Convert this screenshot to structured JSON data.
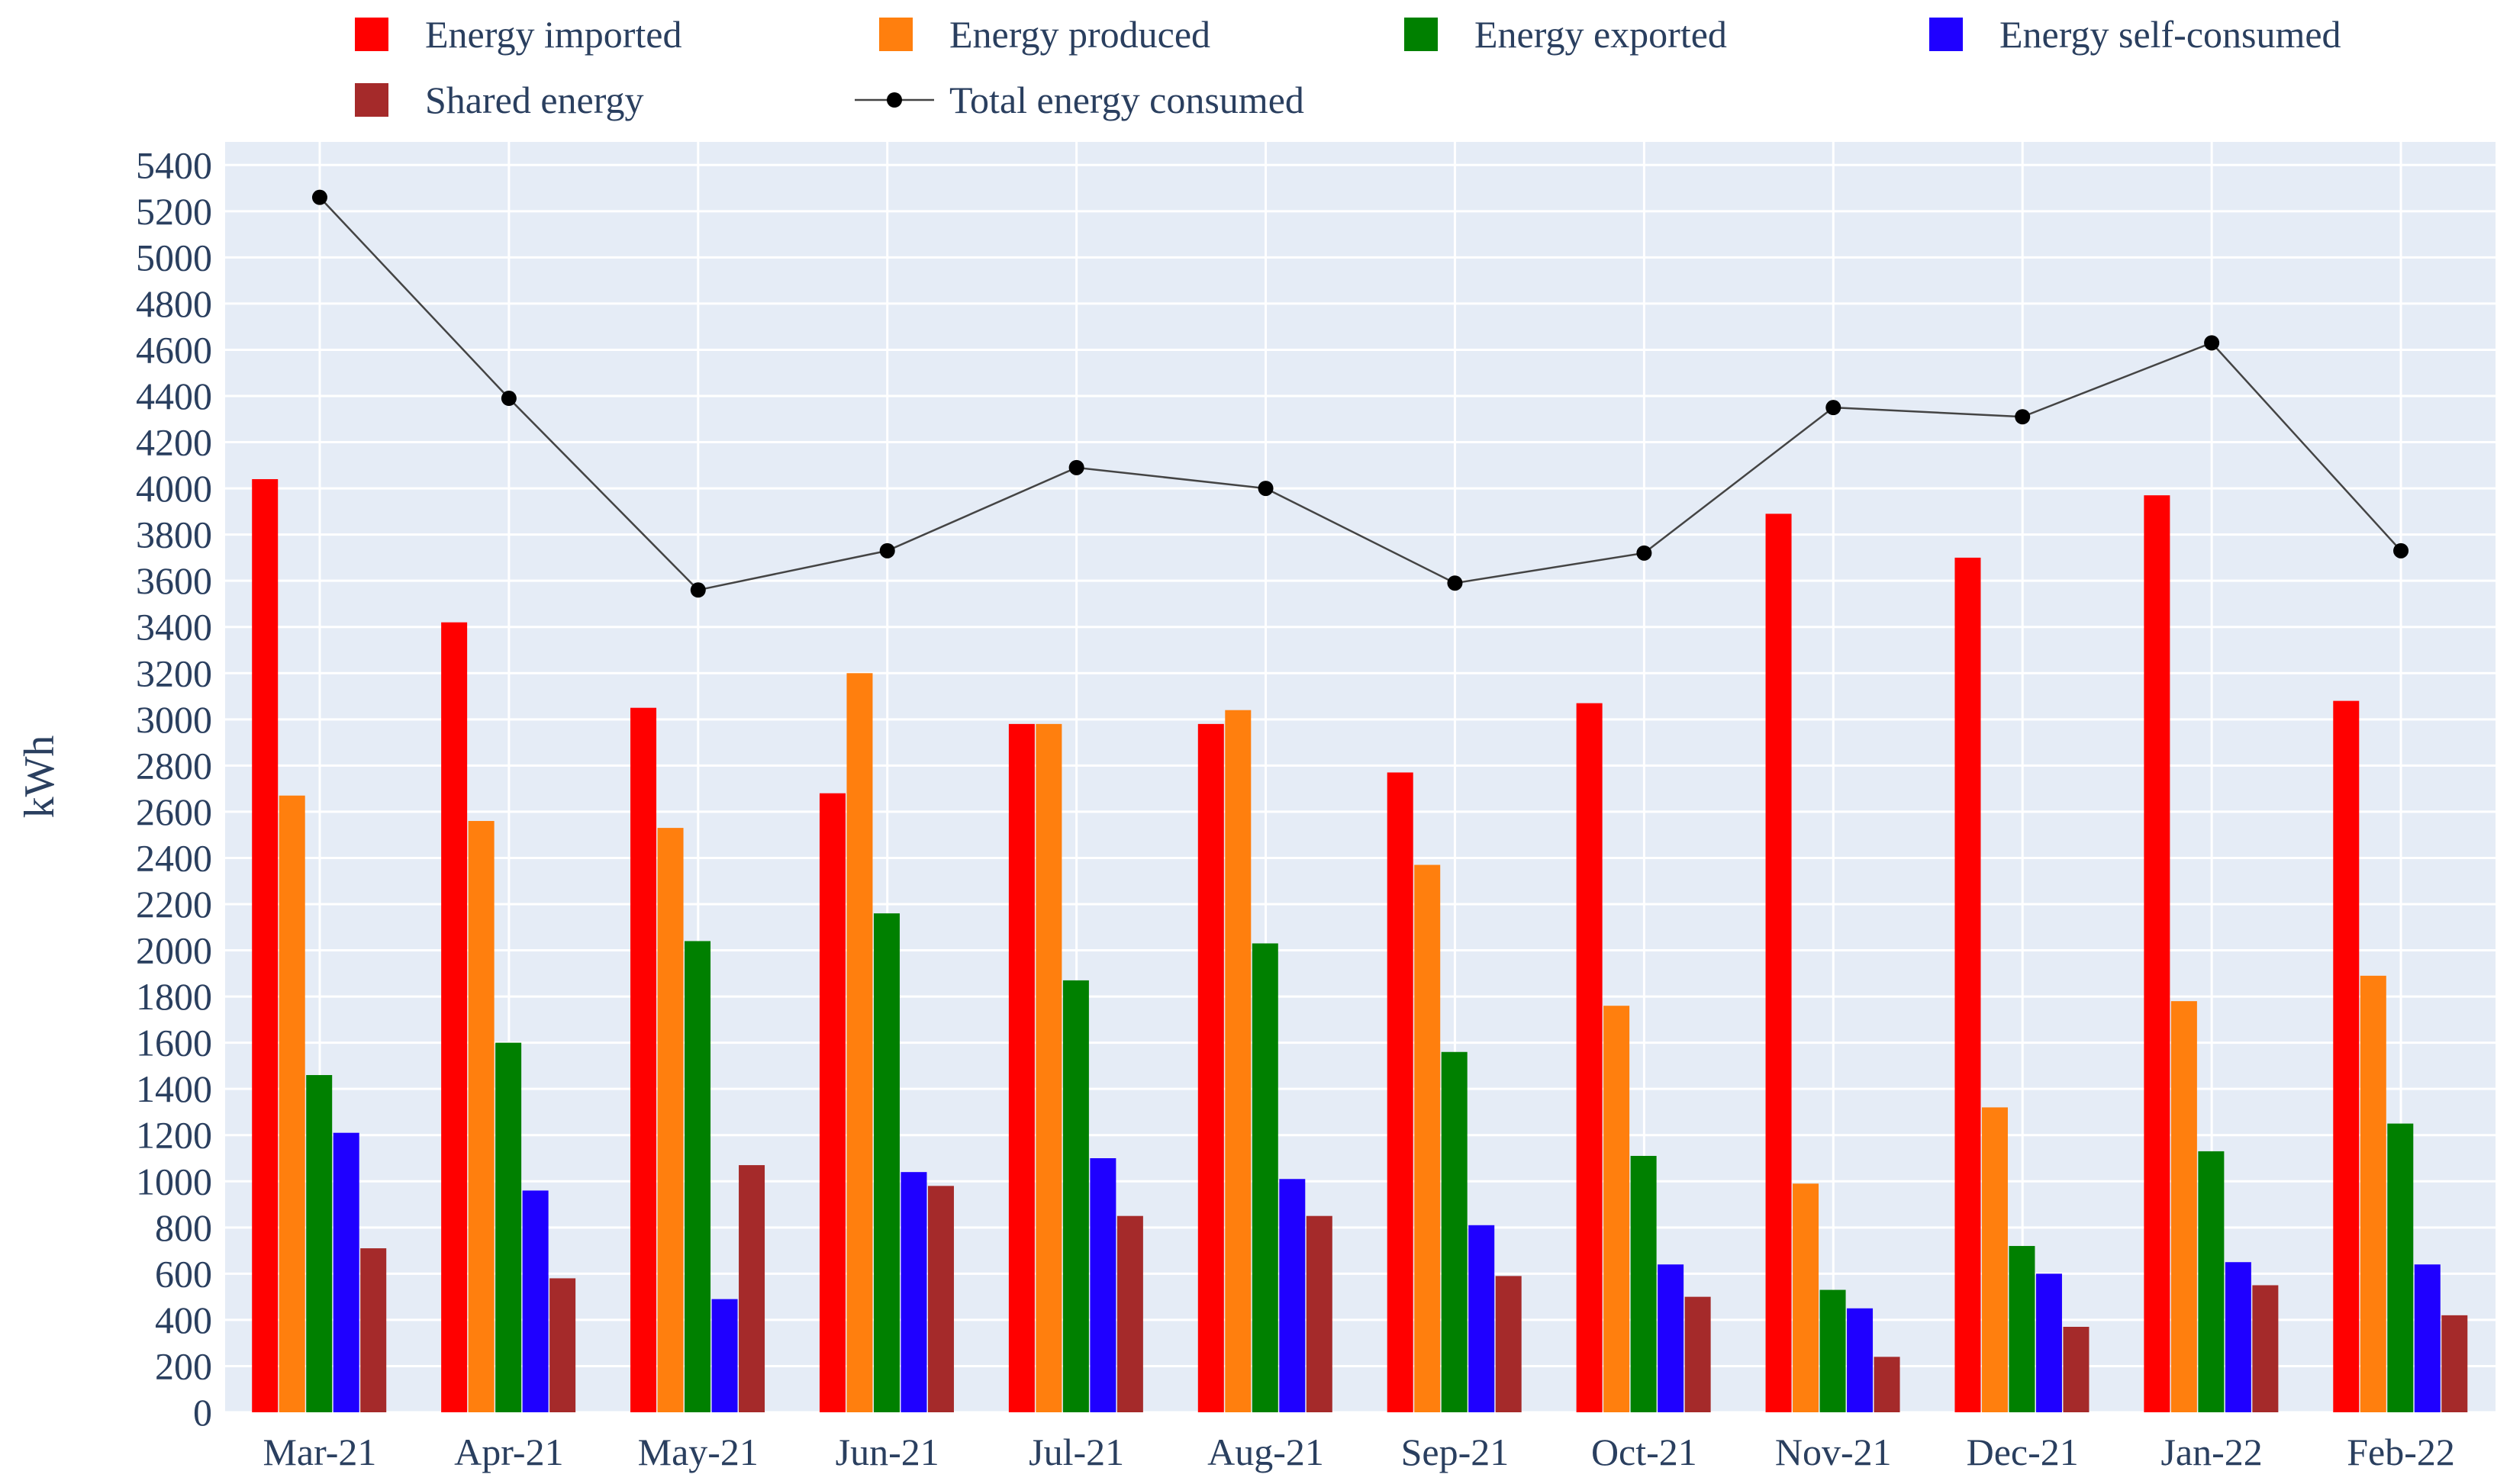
{
  "chart_data": {
    "type": "bar",
    "title": "",
    "xlabel": "",
    "ylabel": "kWh",
    "ylim": [
      0,
      5500
    ],
    "yticks": [
      0,
      200,
      400,
      600,
      800,
      1000,
      1200,
      1400,
      1600,
      1800,
      2000,
      2200,
      2400,
      2600,
      2800,
      3000,
      3200,
      3400,
      3600,
      3800,
      4000,
      4200,
      4400,
      4600,
      4800,
      5000,
      5200,
      5400
    ],
    "grid": true,
    "legend_position": "top",
    "categories": [
      "Mar-21",
      "Apr-21",
      "May-21",
      "Jun-21",
      "Jul-21",
      "Aug-21",
      "Sep-21",
      "Oct-21",
      "Nov-21",
      "Dec-21",
      "Jan-22",
      "Feb-22"
    ],
    "series": [
      {
        "name": "Energy imported",
        "kind": "bar",
        "color": "#ff0000",
        "values": [
          4040,
          3420,
          3050,
          2680,
          2980,
          2980,
          2770,
          3070,
          3890,
          3700,
          3970,
          3080
        ]
      },
      {
        "name": "Energy produced",
        "kind": "bar",
        "color": "#ff7f0e",
        "values": [
          2670,
          2560,
          2530,
          3200,
          2980,
          3040,
          2370,
          1760,
          990,
          1320,
          1780,
          1890
        ]
      },
      {
        "name": "Energy exported",
        "kind": "bar",
        "color": "#008000",
        "values": [
          1460,
          1600,
          2040,
          2160,
          1870,
          2030,
          1560,
          1110,
          530,
          720,
          1130,
          1250
        ]
      },
      {
        "name": "Energy self-consumed",
        "kind": "bar",
        "color": "#1f00ff",
        "values": [
          1210,
          960,
          490,
          1040,
          1100,
          1010,
          810,
          640,
          450,
          600,
          650,
          640
        ]
      },
      {
        "name": "Shared energy",
        "kind": "bar",
        "color": "#a52a2a",
        "values": [
          710,
          580,
          1070,
          980,
          850,
          850,
          590,
          500,
          240,
          370,
          550,
          420
        ]
      },
      {
        "name": "Total energy consumed",
        "kind": "line",
        "color": "#000000",
        "values": [
          5260,
          4390,
          3560,
          3730,
          4090,
          4000,
          3590,
          3720,
          4350,
          4310,
          4630,
          3730
        ]
      }
    ]
  },
  "colors": {
    "plot_background": "#e5ecf6",
    "grid": "#ffffff",
    "text": "#2a3f5f",
    "line_color": "#444444"
  }
}
